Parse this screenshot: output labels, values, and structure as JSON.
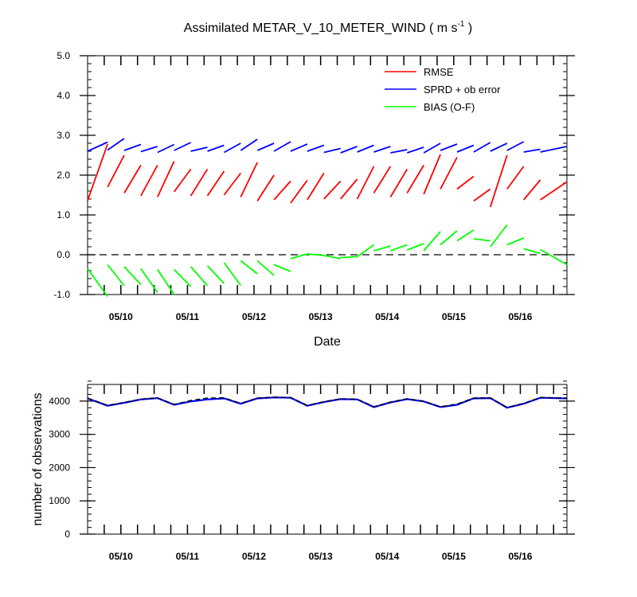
{
  "chart_data": [
    {
      "type": "line",
      "title_main": "Assimilated METAR_V_10_METER_WIND ( m s",
      "title_sup": "-1",
      "title_end": " )",
      "xlabel": "Date",
      "ylabel": "",
      "ylim": [
        -1.0,
        5.0
      ],
      "xlim": [
        0,
        14.4
      ],
      "y_ticks": [
        -1.0,
        0.0,
        1.0,
        2.0,
        3.0,
        4.0,
        5.0
      ],
      "y_tick_labels": [
        "-1.0",
        "0.0",
        "1.0",
        "2.0",
        "3.0",
        "4.0",
        "5.0"
      ],
      "x_date_ticks": [
        1,
        3,
        5,
        7,
        9,
        11,
        13
      ],
      "x_date_labels": [
        "05/10",
        "05/11",
        "05/12",
        "05/13",
        "05/14",
        "05/15",
        "05/16"
      ],
      "zero_line": true,
      "legend_position": "top-right",
      "series": [
        {
          "name": "RMSE",
          "color": "#ff0000",
          "segments": [
            [
              [
                0.0,
                1.36
              ],
              [
                0.6,
                2.78
              ]
            ],
            [
              [
                0.6,
                1.7
              ],
              [
                1.1,
                2.5
              ]
            ],
            [
              [
                1.1,
                1.55
              ],
              [
                1.6,
                2.25
              ]
            ],
            [
              [
                1.6,
                1.48
              ],
              [
                2.1,
                2.25
              ]
            ],
            [
              [
                2.1,
                1.45
              ],
              [
                2.6,
                2.35
              ]
            ],
            [
              [
                2.6,
                1.58
              ],
              [
                3.1,
                2.15
              ]
            ],
            [
              [
                3.1,
                1.48
              ],
              [
                3.6,
                2.15
              ]
            ],
            [
              [
                3.6,
                1.48
              ],
              [
                4.1,
                2.1
              ]
            ],
            [
              [
                4.1,
                1.5
              ],
              [
                4.6,
                2.05
              ]
            ],
            [
              [
                4.6,
                1.45
              ],
              [
                5.1,
                2.32
              ]
            ],
            [
              [
                5.1,
                1.35
              ],
              [
                5.6,
                2.0
              ]
            ],
            [
              [
                5.6,
                1.38
              ],
              [
                6.1,
                1.85
              ]
            ],
            [
              [
                6.1,
                1.3
              ],
              [
                6.6,
                1.87
              ]
            ],
            [
              [
                6.6,
                1.38
              ],
              [
                7.1,
                2.05
              ]
            ],
            [
              [
                7.1,
                1.4
              ],
              [
                7.6,
                1.85
              ]
            ],
            [
              [
                7.6,
                1.4
              ],
              [
                8.1,
                1.9
              ]
            ],
            [
              [
                8.1,
                1.4
              ],
              [
                8.6,
                2.22
              ]
            ],
            [
              [
                8.6,
                1.55
              ],
              [
                9.1,
                2.22
              ]
            ],
            [
              [
                9.1,
                1.45
              ],
              [
                9.6,
                2.15
              ]
            ],
            [
              [
                9.6,
                1.55
              ],
              [
                10.1,
                2.25
              ]
            ],
            [
              [
                10.1,
                1.52
              ],
              [
                10.6,
                2.52
              ]
            ],
            [
              [
                10.6,
                1.65
              ],
              [
                11.1,
                2.45
              ]
            ],
            [
              [
                11.1,
                1.65
              ],
              [
                11.6,
                1.97
              ]
            ],
            [
              [
                11.6,
                1.35
              ],
              [
                12.1,
                1.65
              ]
            ],
            [
              [
                12.1,
                1.2
              ],
              [
                12.6,
                2.5
              ]
            ],
            [
              [
                12.6,
                1.65
              ],
              [
                13.1,
                2.22
              ]
            ],
            [
              [
                13.1,
                1.38
              ],
              [
                13.6,
                1.88
              ]
            ],
            [
              [
                13.6,
                1.38
              ],
              [
                14.4,
                1.83
              ]
            ]
          ]
        },
        {
          "name": "SPRD + ob error",
          "color": "#0000ff",
          "segments": [
            [
              [
                0.0,
                2.6
              ],
              [
                0.6,
                2.83
              ]
            ],
            [
              [
                0.6,
                2.63
              ],
              [
                1.1,
                2.92
              ]
            ],
            [
              [
                1.1,
                2.62
              ],
              [
                1.6,
                2.77
              ]
            ],
            [
              [
                1.6,
                2.59
              ],
              [
                2.1,
                2.72
              ]
            ],
            [
              [
                2.1,
                2.57
              ],
              [
                2.6,
                2.77
              ]
            ],
            [
              [
                2.6,
                2.62
              ],
              [
                3.1,
                2.82
              ]
            ],
            [
              [
                3.1,
                2.6
              ],
              [
                3.6,
                2.7
              ]
            ],
            [
              [
                3.6,
                2.6
              ],
              [
                4.1,
                2.75
              ]
            ],
            [
              [
                4.1,
                2.57
              ],
              [
                4.6,
                2.8
              ]
            ],
            [
              [
                4.6,
                2.62
              ],
              [
                5.1,
                2.9
              ]
            ],
            [
              [
                5.1,
                2.62
              ],
              [
                5.6,
                2.8
              ]
            ],
            [
              [
                5.6,
                2.6
              ],
              [
                6.1,
                2.84
              ]
            ],
            [
              [
                6.1,
                2.6
              ],
              [
                6.6,
                2.78
              ]
            ],
            [
              [
                6.6,
                2.6
              ],
              [
                7.1,
                2.75
              ]
            ],
            [
              [
                7.1,
                2.57
              ],
              [
                7.6,
                2.67
              ]
            ],
            [
              [
                7.6,
                2.56
              ],
              [
                8.1,
                2.72
              ]
            ],
            [
              [
                8.1,
                2.58
              ],
              [
                8.6,
                2.75
              ]
            ],
            [
              [
                8.6,
                2.58
              ],
              [
                9.1,
                2.72
              ]
            ],
            [
              [
                9.1,
                2.56
              ],
              [
                9.6,
                2.64
              ]
            ],
            [
              [
                9.6,
                2.56
              ],
              [
                10.1,
                2.7
              ]
            ],
            [
              [
                10.1,
                2.56
              ],
              [
                10.6,
                2.8
              ]
            ],
            [
              [
                10.6,
                2.62
              ],
              [
                11.1,
                2.78
              ]
            ],
            [
              [
                11.1,
                2.58
              ],
              [
                11.6,
                2.75
              ]
            ],
            [
              [
                11.6,
                2.58
              ],
              [
                12.1,
                2.82
              ]
            ],
            [
              [
                12.1,
                2.6
              ],
              [
                12.6,
                2.8
              ]
            ],
            [
              [
                12.6,
                2.62
              ],
              [
                13.1,
                2.84
              ]
            ],
            [
              [
                13.1,
                2.58
              ],
              [
                13.6,
                2.65
              ]
            ],
            [
              [
                13.6,
                2.58
              ],
              [
                14.4,
                2.72
              ]
            ]
          ]
        },
        {
          "name": "BIAS (O-F)",
          "color": "#00ff00",
          "segments": [
            [
              [
                0.0,
                -0.35
              ],
              [
                0.6,
                -1.05
              ]
            ],
            [
              [
                0.6,
                -0.25
              ],
              [
                1.1,
                -0.78
              ]
            ],
            [
              [
                1.1,
                -0.3
              ],
              [
                1.6,
                -0.75
              ]
            ],
            [
              [
                1.6,
                -0.35
              ],
              [
                2.1,
                -0.95
              ]
            ],
            [
              [
                2.1,
                -0.37
              ],
              [
                2.6,
                -1.0
              ]
            ],
            [
              [
                2.6,
                -0.37
              ],
              [
                3.1,
                -0.8
              ]
            ],
            [
              [
                3.1,
                -0.3
              ],
              [
                3.6,
                -0.78
              ]
            ],
            [
              [
                3.6,
                -0.28
              ],
              [
                4.1,
                -0.72
              ]
            ],
            [
              [
                4.1,
                -0.2
              ],
              [
                4.6,
                -0.77
              ]
            ],
            [
              [
                4.6,
                -0.15
              ],
              [
                5.1,
                -0.48
              ]
            ],
            [
              [
                5.1,
                -0.15
              ],
              [
                5.6,
                -0.52
              ]
            ],
            [
              [
                5.6,
                -0.25
              ],
              [
                6.1,
                -0.42
              ]
            ],
            [
              [
                6.1,
                -0.1
              ],
              [
                6.6,
                0.02
              ]
            ],
            [
              [
                6.6,
                0.02
              ],
              [
                7.1,
                -0.02
              ]
            ],
            [
              [
                7.1,
                -0.02
              ],
              [
                7.6,
                -0.1
              ]
            ],
            [
              [
                7.6,
                -0.07
              ],
              [
                8.1,
                -0.05
              ]
            ],
            [
              [
                8.1,
                -0.05
              ],
              [
                8.6,
                0.25
              ]
            ],
            [
              [
                8.6,
                0.1
              ],
              [
                9.1,
                0.22
              ]
            ],
            [
              [
                9.1,
                0.1
              ],
              [
                9.6,
                0.25
              ]
            ],
            [
              [
                9.6,
                0.12
              ],
              [
                10.1,
                0.28
              ]
            ],
            [
              [
                10.1,
                0.1
              ],
              [
                10.6,
                0.58
              ]
            ],
            [
              [
                10.6,
                0.25
              ],
              [
                11.1,
                0.6
              ]
            ],
            [
              [
                11.1,
                0.35
              ],
              [
                11.6,
                0.62
              ]
            ],
            [
              [
                11.6,
                0.4
              ],
              [
                12.1,
                0.35
              ]
            ],
            [
              [
                12.1,
                0.2
              ],
              [
                12.6,
                0.75
              ]
            ],
            [
              [
                12.6,
                0.25
              ],
              [
                13.1,
                0.42
              ]
            ],
            [
              [
                13.1,
                0.15
              ],
              [
                13.6,
                0.03
              ]
            ],
            [
              [
                13.6,
                0.13
              ],
              [
                14.4,
                -0.25
              ]
            ]
          ]
        }
      ]
    },
    {
      "type": "line",
      "title": "",
      "xlabel": "",
      "ylabel": "number of observations",
      "ylim": [
        0,
        4500
      ],
      "xlim": [
        0,
        14.4
      ],
      "y_ticks": [
        0,
        1000,
        2000,
        3000,
        4000
      ],
      "y_tick_labels": [
        "0",
        "1000",
        "2000",
        "3000",
        "4000"
      ],
      "x_date_ticks": [
        1,
        3,
        5,
        7,
        9,
        11,
        13
      ],
      "x_date_labels": [
        "05/10",
        "05/11",
        "05/12",
        "05/13",
        "05/14",
        "05/15",
        "05/16"
      ],
      "series": [
        {
          "color": "#0000ff",
          "dashed": false,
          "x": [
            0.0,
            0.6,
            1.1,
            1.6,
            2.1,
            2.6,
            3.1,
            3.6,
            4.1,
            4.6,
            5.1,
            5.6,
            6.1,
            6.6,
            7.1,
            7.6,
            8.1,
            8.6,
            9.1,
            9.6,
            10.1,
            10.6,
            11.1,
            11.6,
            12.1,
            12.6,
            13.1,
            13.6,
            14.4
          ],
          "values": [
            4080,
            3860,
            3950,
            4050,
            4090,
            3890,
            3990,
            4050,
            4080,
            3920,
            4080,
            4110,
            4100,
            3860,
            3970,
            4060,
            4050,
            3820,
            3960,
            4060,
            3990,
            3820,
            3890,
            4080,
            4090,
            3800,
            3920,
            4100,
            4080
          ]
        },
        {
          "color": "#000000",
          "dashed": true,
          "x": [
            0.0,
            0.6,
            1.1,
            1.6,
            2.1,
            2.6,
            3.1,
            3.6,
            4.1,
            4.6,
            5.1,
            5.6,
            6.1,
            6.6,
            7.1,
            7.6,
            8.1,
            8.6,
            9.1,
            9.6,
            10.1,
            10.6,
            11.1,
            11.6,
            12.1,
            12.6,
            13.1,
            13.6,
            14.4
          ],
          "values": [
            4090,
            3870,
            3960,
            4060,
            4100,
            3900,
            4020,
            4090,
            4100,
            3930,
            4090,
            4120,
            4110,
            3870,
            3980,
            4070,
            4060,
            3830,
            3970,
            4070,
            4000,
            3830,
            3910,
            4090,
            4100,
            3810,
            3930,
            4110,
            4090
          ]
        }
      ]
    }
  ]
}
